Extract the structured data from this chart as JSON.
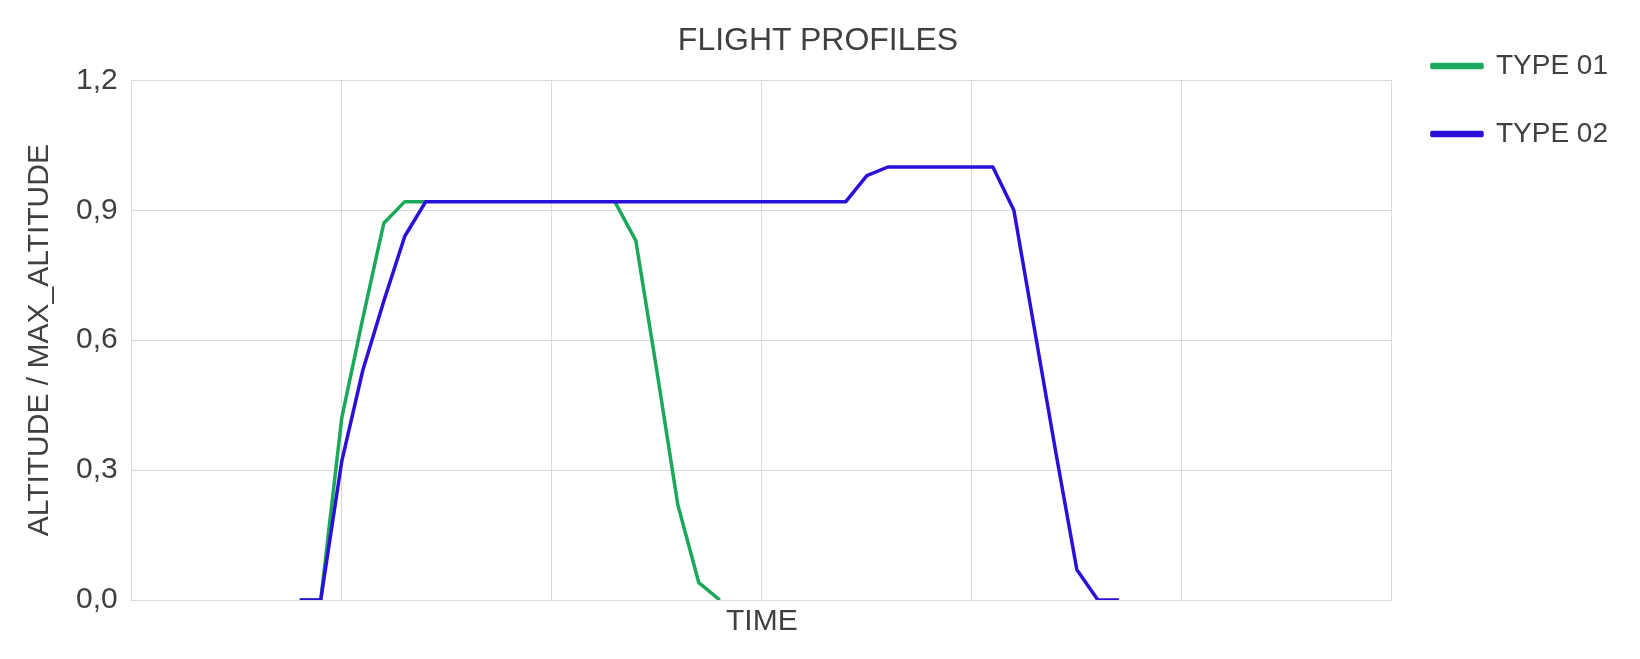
{
  "chart_data": {
    "type": "line",
    "title": "FLIGHT PROFILES",
    "xlabel": "TIME",
    "ylabel": "ALTITUDE / MAX_ALTITUDE",
    "categories": [
      null,
      null,
      null,
      null,
      null,
      null,
      null,
      null,
      null,
      null,
      null,
      null,
      null,
      null,
      null,
      null,
      null,
      null,
      null,
      null,
      null,
      null,
      null,
      null,
      null,
      null,
      null,
      null,
      null,
      null,
      null,
      null,
      null,
      null,
      null,
      null,
      null,
      null,
      null,
      null,
      null,
      null,
      null,
      null,
      null,
      null,
      null,
      null,
      null,
      null,
      null,
      null,
      null,
      null,
      null,
      null,
      null,
      null,
      null,
      null,
      null
    ],
    "ylim": [
      0,
      1.2
    ],
    "yticks": [
      {
        "value": 0,
        "label": "0,0"
      },
      {
        "value": 0.3,
        "label": "0,3"
      },
      {
        "value": 0.6,
        "label": "0,6"
      },
      {
        "value": 0.9,
        "label": "0,9"
      },
      {
        "value": 1.2,
        "label": "1,2"
      }
    ],
    "tick_labels": "y",
    "grid": true,
    "legend": "top right",
    "marker": "none",
    "line_style": "solid",
    "series": [
      {
        "name": "TYPE 01",
        "color": "#1aa85a",
        "values": [
          null,
          null,
          null,
          null,
          null,
          null,
          null,
          null,
          0,
          0,
          0.42,
          0.65,
          0.87,
          0.92,
          0.92,
          null,
          null,
          null,
          null,
          null,
          null,
          null,
          null,
          0.92,
          0.83,
          0.53,
          0.22,
          0.04,
          0,
          null,
          null,
          null,
          null,
          null,
          null,
          null,
          null,
          null,
          null,
          null,
          null,
          null,
          null,
          null,
          null,
          null,
          null,
          null,
          null,
          null,
          null,
          null,
          null,
          null,
          null,
          null,
          null,
          null,
          null,
          null,
          null
        ]
      },
      {
        "name": "TYPE 02",
        "color": "#2a10d8",
        "values": [
          null,
          null,
          null,
          null,
          null,
          null,
          null,
          null,
          0,
          0,
          0.32,
          0.53,
          0.69,
          0.84,
          0.92,
          0.92,
          0.92,
          0.92,
          0.92,
          0.92,
          0.92,
          0.92,
          0.92,
          0.92,
          0.92,
          0.92,
          0.92,
          0.92,
          0.92,
          0.92,
          0.92,
          0.92,
          0.92,
          0.92,
          0.92,
          0.98,
          1.0,
          1.0,
          1.0,
          1.0,
          1.0,
          1.0,
          0.9,
          0.62,
          0.34,
          0.07,
          0,
          0,
          null,
          null,
          null,
          null,
          null,
          null,
          null,
          null,
          null,
          null,
          null,
          null,
          null
        ]
      }
    ]
  }
}
